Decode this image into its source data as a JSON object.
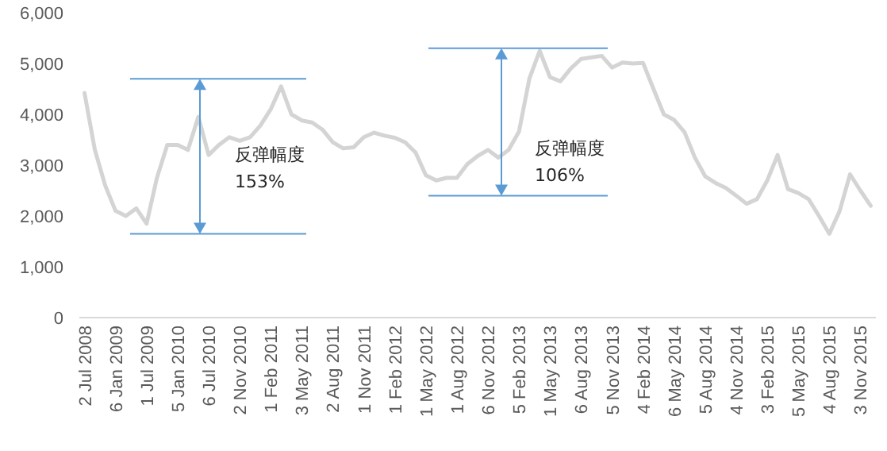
{
  "chart_data": {
    "type": "line",
    "categories": [
      "2 Jul 2008",
      null,
      null,
      "6 Jan 2009",
      null,
      null,
      "1 Jul 2009",
      null,
      null,
      "5 Jan 2010",
      null,
      null,
      "6 Jul 2010",
      null,
      null,
      "2 Nov 2010",
      null,
      null,
      "1 Feb 2011",
      null,
      null,
      "3 May 2011",
      null,
      null,
      "2 Aug 2011",
      null,
      null,
      "1 Nov 2011",
      null,
      null,
      "1 Feb 2012",
      null,
      null,
      "1 May 2012",
      null,
      null,
      "1 Aug 2012",
      null,
      null,
      "6 Nov 2012",
      null,
      null,
      "5 Feb 2013",
      null,
      null,
      "1 May 2013",
      null,
      null,
      "6 Aug 2013",
      null,
      null,
      "5 Nov 2013",
      null,
      null,
      "4 Feb 2014",
      null,
      null,
      "6 May 2014",
      null,
      null,
      "5 Aug 2014",
      null,
      null,
      "4 Nov 2014",
      null,
      null,
      "3 Feb 2015",
      null,
      null,
      "5 May 2015",
      null,
      null,
      "4 Aug 2015",
      null,
      null,
      "3 Nov 2015",
      null
    ],
    "series": [
      {
        "color": "#d4d4d4",
        "values": [
          4420,
          3300,
          2600,
          2100,
          2000,
          2150,
          1850,
          2750,
          3400,
          3400,
          3300,
          3950,
          3200,
          3400,
          3550,
          3480,
          3550,
          3780,
          4100,
          4550,
          4000,
          3880,
          3840,
          3700,
          3450,
          3330,
          3350,
          3550,
          3640,
          3580,
          3540,
          3450,
          3250,
          2800,
          2700,
          2750,
          2750,
          3020,
          3180,
          3300,
          3150,
          3300,
          3660,
          4700,
          5250,
          4730,
          4650,
          4900,
          5090,
          5120,
          5150,
          4920,
          5020,
          5000,
          5010,
          4500,
          4000,
          3890,
          3650,
          3150,
          2780,
          2650,
          2550,
          2400,
          2240,
          2330,
          2700,
          3200,
          2530,
          2450,
          2330,
          2000,
          1650,
          2100,
          2820,
          2500,
          2200
        ]
      }
    ],
    "ylim": [
      0,
      6000
    ],
    "yticks": [
      {
        "value": 0,
        "label": "0"
      },
      {
        "value": 1000,
        "label": "1,000"
      },
      {
        "value": 2000,
        "label": "2,000"
      },
      {
        "value": 3000,
        "label": "3,000"
      },
      {
        "value": 4000,
        "label": "4,000"
      },
      {
        "value": 5000,
        "label": "5,000"
      },
      {
        "value": 6000,
        "label": "6,000"
      }
    ],
    "ref_lines": [
      {
        "axis": "y",
        "value": 4700,
        "color": "#5b9bd5"
      },
      {
        "axis": "y",
        "value": 1650,
        "color": "#5b9bd5"
      },
      {
        "axis": "y",
        "value": 5300,
        "color": "#5b9bd5"
      },
      {
        "axis": "y",
        "value": 2400,
        "color": "#5b9bd5"
      }
    ],
    "annotations": [
      "反弹幅度",
      "153%",
      "反弹幅度",
      "106%"
    ]
  }
}
